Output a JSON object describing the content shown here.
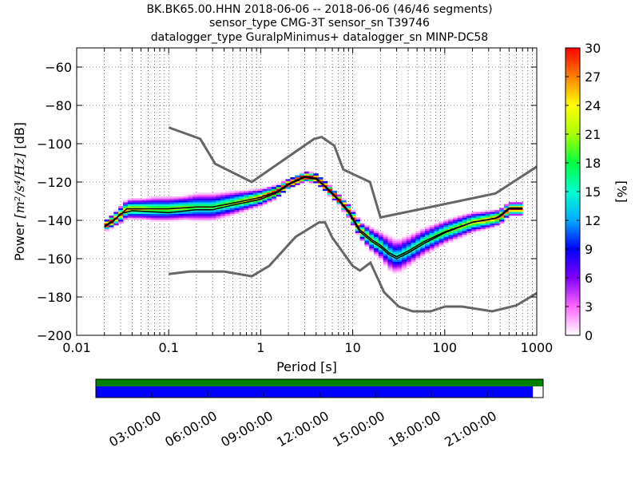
{
  "title": {
    "line1": "BK.BK65.00.HHN   2018-06-06 -- 2018-06-06  (46/46 segments)",
    "line2": "sensor_type CMG-3T sensor_sn T39746",
    "line3": "datalogger_type GuralpMinimus+ datalogger_sn MINP-DC58"
  },
  "chart_data": {
    "type": "heatmap",
    "xlabel": "Period [s]",
    "ylabel": "Power [m²/s⁴/Hz] [dB]",
    "ylabel_prefix": "Power ",
    "ylabel_math": "[m²/s⁴/Hz]",
    "ylabel_suffix": " [dB]",
    "x_scale": "log",
    "xlim": [
      0.01,
      1000
    ],
    "ylim": [
      -200,
      -50
    ],
    "x_ticks": [
      0.01,
      0.1,
      1,
      10,
      100,
      1000
    ],
    "x_tick_labels": [
      "0.01",
      "0.1",
      "1",
      "10",
      "100",
      "1000"
    ],
    "y_ticks": [
      -200,
      -180,
      -160,
      -140,
      -120,
      -100,
      -80,
      -60
    ],
    "y_tick_labels": [
      "−200",
      "−180",
      "−160",
      "−140",
      "−120",
      "−100",
      "−80",
      "−60"
    ],
    "colorbar": {
      "label": "[%]",
      "range": [
        0,
        30
      ],
      "ticks": [
        0,
        3,
        6,
        9,
        12,
        15,
        18,
        21,
        24,
        27,
        30
      ],
      "tick_labels": [
        "0",
        "3",
        "6",
        "9",
        "12",
        "15",
        "18",
        "21",
        "24",
        "27",
        "30"
      ]
    },
    "reference_models": {
      "high_noise": [
        [
          0.1,
          -91.5
        ],
        [
          0.22,
          -97.4
        ],
        [
          0.32,
          -110.5
        ],
        [
          0.8,
          -120
        ],
        [
          3.8,
          -97.5
        ],
        [
          4.6,
          -96.5
        ],
        [
          6.3,
          -101
        ],
        [
          7.9,
          -113.5
        ],
        [
          15.4,
          -120
        ],
        [
          20,
          -138.5
        ],
        [
          354.8,
          -126
        ],
        [
          1000,
          -112
        ]
      ],
      "low_noise": [
        [
          0.1,
          -168
        ],
        [
          0.17,
          -166.7
        ],
        [
          0.4,
          -166.7
        ],
        [
          0.8,
          -169.2
        ],
        [
          1.24,
          -163.7
        ],
        [
          2.4,
          -148.6
        ],
        [
          4.3,
          -141.1
        ],
        [
          5,
          -141.1
        ],
        [
          6,
          -149
        ],
        [
          10,
          -163.8
        ],
        [
          12,
          -166.2
        ],
        [
          15.6,
          -162.1
        ],
        [
          21.9,
          -177.5
        ],
        [
          31.6,
          -185
        ],
        [
          45,
          -187.5
        ],
        [
          70,
          -187.5
        ],
        [
          101,
          -185
        ],
        [
          154,
          -185
        ],
        [
          328,
          -187.5
        ],
        [
          600,
          -184.4
        ],
        [
          1000,
          -178
        ]
      ]
    },
    "median_curve": [
      [
        0.02,
        -143
      ],
      [
        0.025,
        -140
      ],
      [
        0.03,
        -137
      ],
      [
        0.035,
        -134
      ],
      [
        0.05,
        -134
      ],
      [
        0.1,
        -134
      ],
      [
        0.2,
        -133
      ],
      [
        0.3,
        -133
      ],
      [
        0.5,
        -131
      ],
      [
        1,
        -128
      ],
      [
        1.5,
        -125
      ],
      [
        2,
        -121
      ],
      [
        3,
        -117
      ],
      [
        4,
        -118
      ],
      [
        5,
        -122
      ],
      [
        7,
        -129
      ],
      [
        9,
        -135
      ],
      [
        12,
        -145
      ],
      [
        16,
        -150
      ],
      [
        20,
        -153
      ],
      [
        25,
        -157
      ],
      [
        30,
        -159
      ],
      [
        40,
        -156
      ],
      [
        60,
        -151
      ],
      [
        100,
        -146
      ],
      [
        200,
        -141
      ],
      [
        350,
        -139
      ],
      [
        400,
        -138
      ],
      [
        500,
        -134
      ],
      [
        700,
        -134
      ]
    ],
    "mean_curve": [
      [
        0.02,
        -143.5
      ],
      [
        0.025,
        -140.5
      ],
      [
        0.03,
        -136.5
      ],
      [
        0.04,
        -135
      ],
      [
        0.1,
        -136
      ],
      [
        0.2,
        -134.5
      ],
      [
        0.3,
        -134.5
      ],
      [
        0.5,
        -132
      ],
      [
        1,
        -129
      ],
      [
        1.5,
        -125.5
      ],
      [
        2,
        -121.5
      ],
      [
        3,
        -117.5
      ],
      [
        4,
        -118.5
      ],
      [
        5,
        -122.5
      ],
      [
        7,
        -129.5
      ],
      [
        9,
        -136
      ],
      [
        12,
        -146
      ],
      [
        16,
        -151
      ],
      [
        20,
        -154
      ],
      [
        25,
        -158
      ],
      [
        30,
        -160
      ],
      [
        40,
        -157
      ],
      [
        60,
        -152
      ],
      [
        100,
        -146.5
      ],
      [
        200,
        -141
      ],
      [
        350,
        -139
      ],
      [
        400,
        -137.5
      ],
      [
        500,
        -133.5
      ],
      [
        700,
        -133.5
      ]
    ],
    "histogram_band": {
      "note": "probability density (%) of PSD values, spread around median",
      "x": [
        0.02,
        0.025,
        0.03,
        0.04,
        0.05,
        0.07,
        0.1,
        0.15,
        0.2,
        0.3,
        0.5,
        0.7,
        1,
        1.5,
        2,
        3,
        4,
        5,
        7,
        9,
        12,
        16,
        20,
        25,
        30,
        40,
        60,
        100,
        200,
        350,
        500,
        700
      ],
      "halfwidth_db": [
        2,
        3,
        4,
        5,
        5,
        6,
        6,
        6,
        7,
        7,
        6,
        5,
        4,
        3,
        2,
        2,
        2,
        2,
        2,
        3,
        4,
        6,
        7,
        9,
        9,
        8,
        7,
        6,
        5,
        4,
        3,
        3
      ]
    },
    "time_coverage": {
      "tick_labels": [
        "03:00:00",
        "06:00:00",
        "09:00:00",
        "12:00:00",
        "15:00:00",
        "18:00:00",
        "21:00:00"
      ],
      "green_fraction": 1.0,
      "blue_fraction": 0.977
    }
  }
}
